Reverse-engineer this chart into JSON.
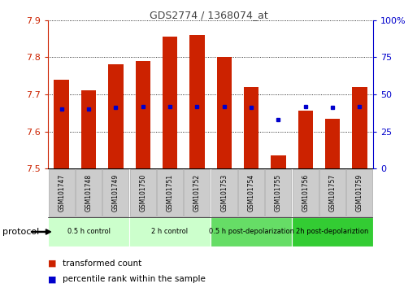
{
  "title": "GDS2774 / 1368074_at",
  "samples": [
    "GSM101747",
    "GSM101748",
    "GSM101749",
    "GSM101750",
    "GSM101751",
    "GSM101752",
    "GSM101753",
    "GSM101754",
    "GSM101755",
    "GSM101756",
    "GSM101757",
    "GSM101759"
  ],
  "transformed_count": [
    7.74,
    7.71,
    7.78,
    7.79,
    7.855,
    7.86,
    7.8,
    7.72,
    7.535,
    7.655,
    7.635,
    7.72
  ],
  "percentile_rank": [
    40,
    40,
    41,
    42,
    42,
    42,
    42,
    41,
    33,
    42,
    41,
    42
  ],
  "y_min": 7.5,
  "y_max": 7.9,
  "y_ticks": [
    7.5,
    7.6,
    7.7,
    7.8,
    7.9
  ],
  "y2_ticks": [
    0,
    25,
    50,
    75,
    100
  ],
  "bar_color": "#cc2200",
  "dot_color": "#0000cc",
  "left_axis_color": "#cc2200",
  "right_axis_color": "#0000cc",
  "grid_color": "#000000",
  "title_color": "#444444",
  "sample_box_color": "#cccccc",
  "sample_box_edge": "#aaaaaa",
  "group_colors": [
    "#ccffcc",
    "#ccffcc",
    "#66dd66",
    "#33cc33"
  ],
  "group_labels": [
    "0.5 h control",
    "2 h control",
    "0.5 h post-depolarization",
    "2h post-depolariztion"
  ],
  "group_starts": [
    0,
    3,
    6,
    9
  ],
  "group_ends": [
    2,
    5,
    8,
    11
  ],
  "legend_labels": [
    "transformed count",
    "percentile rank within the sample"
  ],
  "legend_colors": [
    "#cc2200",
    "#0000cc"
  ],
  "protocol_label": "protocol"
}
